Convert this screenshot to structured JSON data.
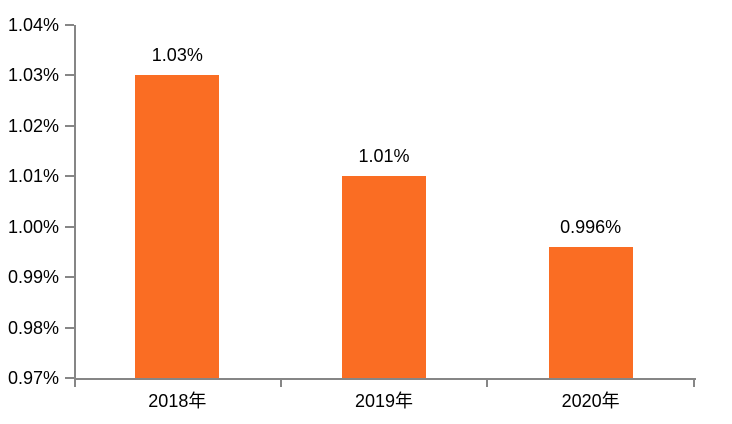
{
  "chart_data": {
    "type": "bar",
    "title": "",
    "xlabel": "",
    "ylabel": "",
    "categories": [
      "2018年",
      "2019年",
      "2020年"
    ],
    "values": [
      1.03,
      1.01,
      0.996
    ],
    "value_labels": [
      "1.03%",
      "1.01%",
      "0.996%"
    ],
    "ylim": [
      0.97,
      1.04
    ],
    "ytick_labels": [
      "0.97%",
      "0.98%",
      "0.99%",
      "1.00%",
      "1.01%",
      "1.02%",
      "1.03%",
      "1.04%"
    ],
    "grid": false,
    "legend_position": "none",
    "bar_color": "#FA6D23",
    "axis_color": "#868686",
    "text_color": "#000000",
    "background_color": "#FFFFFF"
  }
}
